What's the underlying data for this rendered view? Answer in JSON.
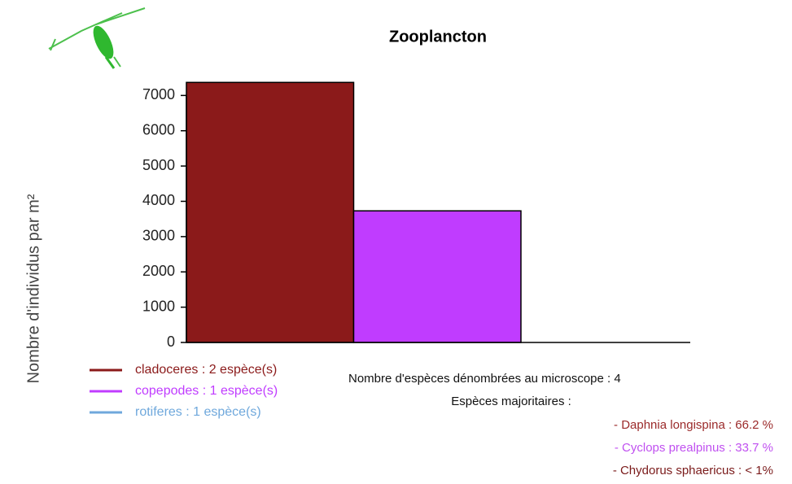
{
  "chart_data": {
    "type": "bar",
    "title": "Zooplancton",
    "y_label": "Nombre d'individus par m²",
    "categories": [
      "cladoceres : 2  espèce(s)",
      "copepodes : 1  espèce(s)",
      "rotiferes : 1  espèce(s)"
    ],
    "values": [
      7370,
      3730,
      0
    ],
    "colors": [
      "#8b1a1a",
      "#c03cff",
      "#6fa8dc"
    ],
    "ylim": [
      0,
      7400
    ],
    "yticks": [
      0,
      1000,
      2000,
      3000,
      4000,
      5000,
      6000,
      7000
    ],
    "legend": "bottom-left",
    "annotations": [
      "Nombre d'espèces dénombrées au microscope : 4",
      "Espèces majoritaires :"
    ],
    "species": [
      {
        "text": "- Daphnia longispina : 66.2 %",
        "color": "#9b2a2a"
      },
      {
        "text": "- Cyclops prealpinus : 33.7 %",
        "color": "#c050f0"
      },
      {
        "text": "- Chydorus sphaericus : < 1%",
        "color": "#7a1a1a"
      }
    ]
  }
}
